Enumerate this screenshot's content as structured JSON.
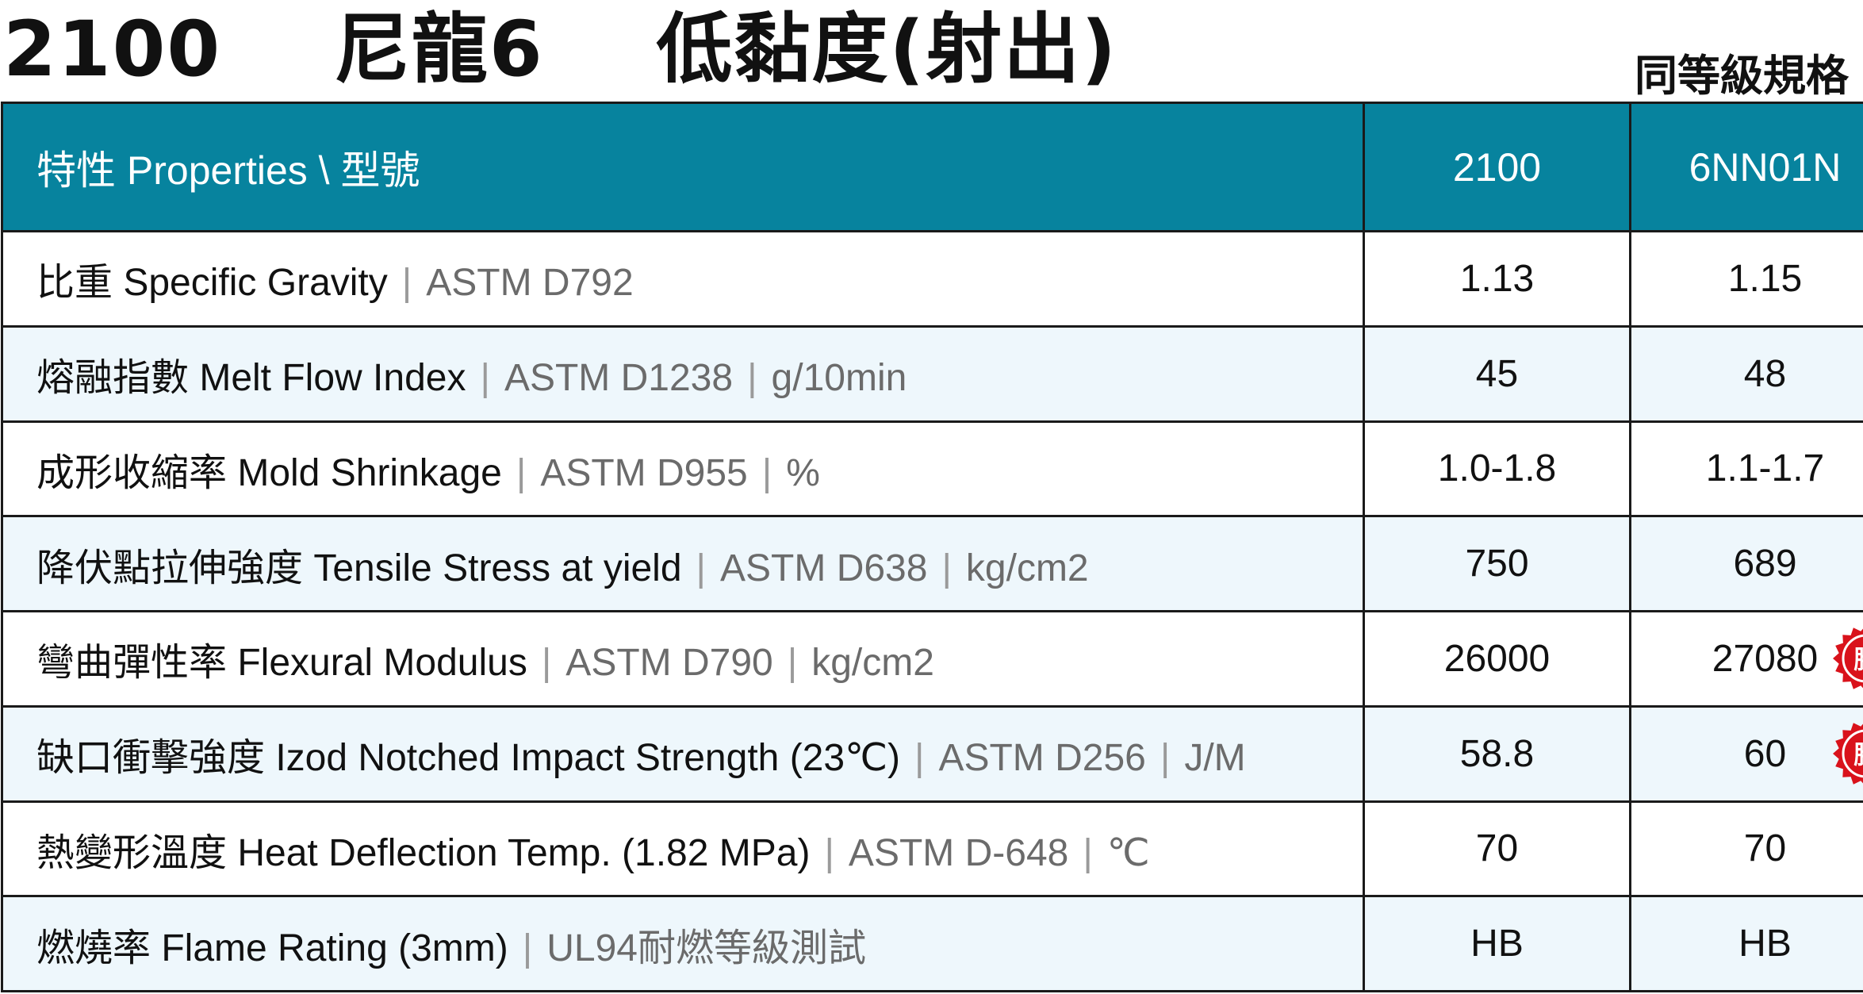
{
  "title": "2100    尼龍6    低黏度(射出)",
  "equivalent_label": "同等級規格",
  "header": {
    "property_col": "特性 Properties \\ 型號",
    "model_a": "2100",
    "model_b": "6NN01N"
  },
  "rows": [
    {
      "name": "比重 Specific Gravity",
      "standard": "ASTM D792",
      "unit": "",
      "a": "1.13",
      "b": "1.15",
      "badge": ""
    },
    {
      "name": "熔融指數 Melt Flow Index",
      "standard": "ASTM D1238",
      "unit": "g/10min",
      "a": "45",
      "b": "48",
      "badge": ""
    },
    {
      "name": "成形收縮率 Mold Shrinkage",
      "standard": "ASTM D955",
      "unit": "%",
      "a": "1.0-1.8",
      "b": "1.1-1.7",
      "badge": ""
    },
    {
      "name": "降伏點拉伸強度 Tensile Stress at yield",
      "standard": "ASTM D638",
      "unit": "kg/cm2",
      "a": "750",
      "b": "689",
      "badge": ""
    },
    {
      "name": "彎曲彈性率 Flexural Modulus",
      "standard": "ASTM D790",
      "unit": "kg/cm2",
      "a": "26000",
      "b": "27080",
      "badge": "勝"
    },
    {
      "name": "缺口衝擊強度 Izod Notched Impact Strength (23℃)",
      "standard": "ASTM D256",
      "unit": "J/M",
      "a": "58.8",
      "b": "60",
      "badge": "勝"
    },
    {
      "name": "熱變形溫度 Heat Deflection Temp. (1.82 MPa)",
      "standard": "ASTM D-648",
      "unit": "℃",
      "a": "70",
      "b": "70",
      "badge": ""
    },
    {
      "name": "燃燒率 Flame Rating (3mm)",
      "standard": "UL94耐燃等級測試",
      "unit": "",
      "a": "HB",
      "b": "HB",
      "badge": ""
    }
  ],
  "colors": {
    "header_bg": "#07839e",
    "alt_row_bg": "#eef7fc",
    "badge_red": "#d9121b"
  }
}
